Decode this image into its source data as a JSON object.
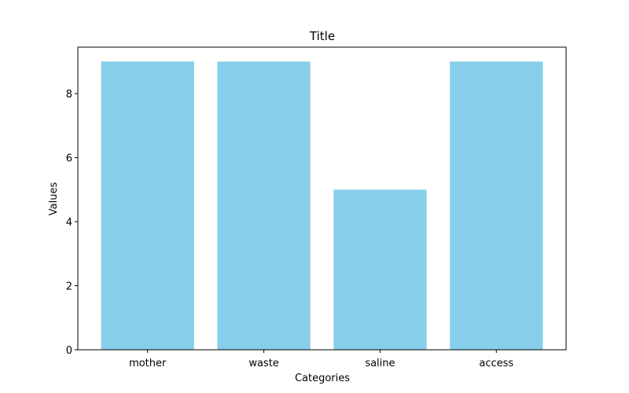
{
  "chart_data": {
    "type": "bar",
    "title": "Title",
    "xlabel": "Categories",
    "ylabel": "Values",
    "categories": [
      "mother",
      "waste",
      "saline",
      "access"
    ],
    "values": [
      9,
      9,
      5,
      9
    ],
    "ylim": [
      0,
      9.45
    ],
    "yticks": [
      0,
      2,
      4,
      6,
      8
    ],
    "bar_color": "#87ceeb",
    "grid": false,
    "legend": "none"
  }
}
